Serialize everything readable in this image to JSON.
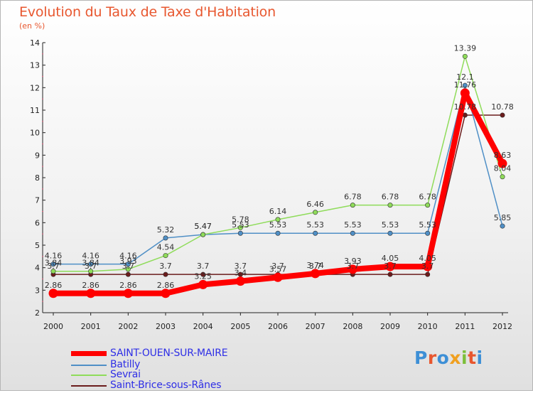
{
  "title": "Evolution du Taux de Taxe d'Habitation",
  "subtitle": "(en %)",
  "logo": {
    "text": "Proxiti",
    "colors": [
      "#3d8fd6",
      "#e8572f",
      "#3d8fd6",
      "#f0a020",
      "#7cbf3a",
      "#e8572f",
      "#3d8fd6"
    ]
  },
  "chart_data": {
    "type": "line",
    "x": [
      "2000",
      "2001",
      "2002",
      "2003",
      "2004",
      "2005",
      "2006",
      "2007",
      "2008",
      "2009",
      "2010",
      "2011",
      "2012"
    ],
    "ylim": [
      2,
      14
    ],
    "yticks": [
      "2",
      "3",
      "4",
      "5",
      "6",
      "7",
      "8",
      "9",
      "10",
      "11",
      "12",
      "13",
      "14"
    ],
    "grid": false,
    "legend_position": "bottom-left",
    "series": [
      {
        "name": "Saint-Brice-sous-Rânes",
        "color": "#6b1c1c",
        "values": [
          3.7,
          3.7,
          3.7,
          3.7,
          3.7,
          3.7,
          3.7,
          3.7,
          3.7,
          3.7,
          3.7,
          10.78,
          10.78
        ],
        "labels": [
          "3.7",
          "3.7",
          "3.7",
          "3.7",
          "3.7",
          "3.7",
          "3.7",
          "3.7",
          "3.7",
          "3.7",
          "3.7",
          "10.78",
          "10.78"
        ]
      },
      {
        "name": "Batilly",
        "color": "#4f8fc6",
        "values": [
          4.16,
          4.16,
          4.16,
          5.32,
          5.47,
          5.53,
          5.53,
          5.53,
          5.53,
          5.53,
          5.53,
          12.1,
          5.85
        ],
        "labels": [
          "4.16",
          "4.16",
          "4.16",
          "5.32",
          "5.47",
          "5.53",
          "5.53",
          "5.53",
          "5.53",
          "5.53",
          "5.53",
          "12.1",
          "5.85"
        ]
      },
      {
        "name": "Sevrai",
        "color": "#8fdc5a",
        "values": [
          3.84,
          3.84,
          3.93,
          4.54,
          5.47,
          5.78,
          6.14,
          6.46,
          6.78,
          6.78,
          6.78,
          13.39,
          8.04
        ],
        "labels": [
          "3.84",
          "3.84",
          "3.93",
          "4.54",
          "5.47",
          "5.78",
          "6.14",
          "6.46",
          "6.78",
          "6.78",
          "6.78",
          "13.39",
          "8.04"
        ]
      },
      {
        "name": "SAINT-OUEN-SUR-MAIRE",
        "color": "#ff0000",
        "values": [
          2.86,
          2.86,
          2.86,
          2.86,
          3.25,
          3.4,
          3.57,
          3.74,
          3.93,
          4.05,
          4.05,
          11.76,
          8.63
        ],
        "labels": [
          "2.86",
          "2.86",
          "2.86",
          "2.86",
          "3.25",
          "3.4",
          "3.57",
          "3.74",
          "3.93",
          "4.05",
          "4.05",
          "11.76",
          "8.63"
        ]
      }
    ],
    "legend": [
      {
        "name": "SAINT-OUEN-SUR-MAIRE",
        "color": "#ff0000"
      },
      {
        "name": "Batilly",
        "color": "#4f8fc6"
      },
      {
        "name": "Sevrai",
        "color": "#8fdc5a"
      },
      {
        "name": "Saint-Brice-sous-Rânes",
        "color": "#6b1c1c"
      }
    ]
  }
}
